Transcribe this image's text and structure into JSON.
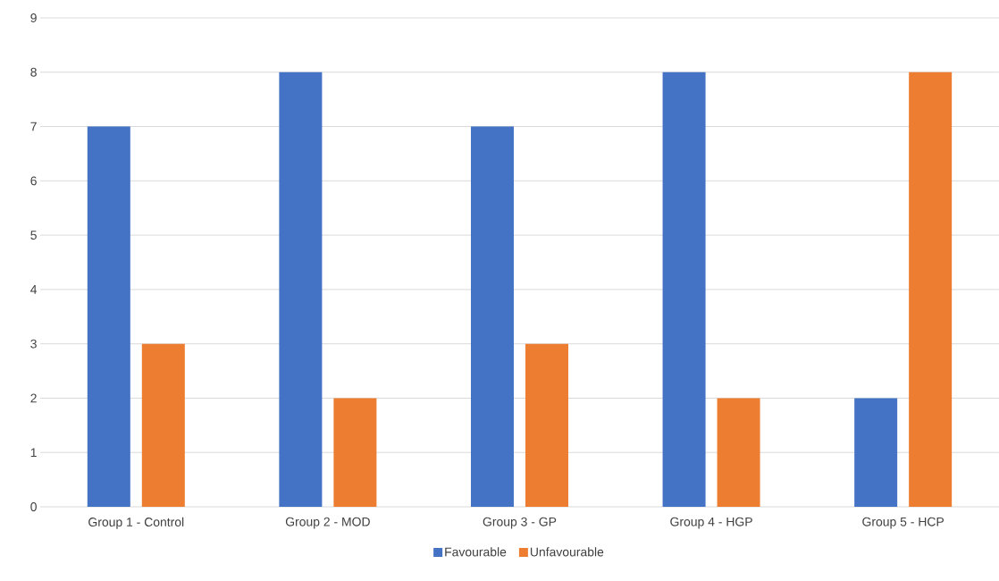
{
  "chart_data": {
    "type": "bar",
    "categories": [
      "Group 1 - Control",
      "Group 2 - MOD",
      "Group 3 - GP",
      "Group 4 - HGP",
      "Group 5 - HCP"
    ],
    "series": [
      {
        "name": "Favourable",
        "color": "#4472c4",
        "values": [
          7,
          8,
          7,
          8,
          2
        ]
      },
      {
        "name": "Unfavourable",
        "color": "#ed7d31",
        "values": [
          3,
          2,
          3,
          2,
          8
        ]
      }
    ],
    "ylim": [
      0,
      9
    ],
    "yticks": [
      0,
      1,
      2,
      3,
      4,
      5,
      6,
      7,
      8,
      9
    ],
    "grid": "y",
    "legend": "bottom"
  }
}
